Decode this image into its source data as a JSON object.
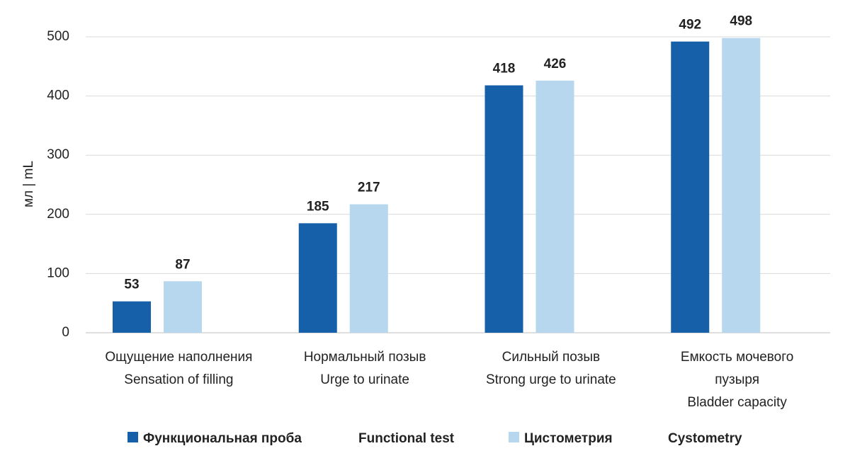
{
  "chart_data": {
    "type": "bar",
    "ylabel": "мл | mL",
    "ylim": [
      0,
      500
    ],
    "yticks": [
      0,
      100,
      200,
      300,
      400,
      500
    ],
    "grid": true,
    "legend_position": "bottom",
    "categories": [
      [
        "Ощущение наполнения",
        "Sensation of filling"
      ],
      [
        "Нормальный позыв",
        "Urge to urinate"
      ],
      [
        "Сильный позыв",
        "Strong urge to urinate"
      ],
      [
        "Емкость мочевого",
        "пузыря",
        "Bladder capacity"
      ]
    ],
    "series": [
      {
        "name": "Функциональная проба",
        "name_en": "Functional test",
        "color": "#1560a8",
        "values": [
          53,
          185,
          418,
          492
        ]
      },
      {
        "name": "Цистометрия",
        "name_en": "Cystometry",
        "color": "#b6d7ee",
        "values": [
          87,
          217,
          426,
          498
        ]
      }
    ]
  }
}
